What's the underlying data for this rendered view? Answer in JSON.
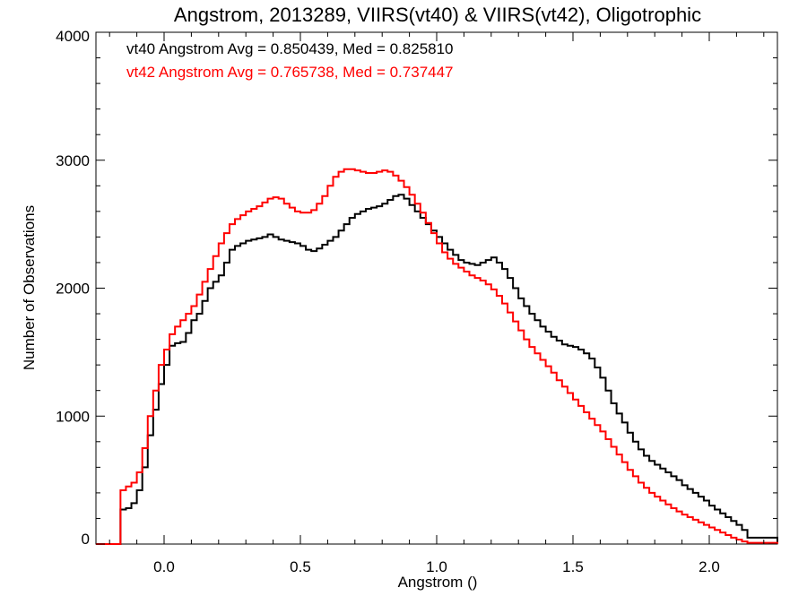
{
  "chart_data": {
    "type": "line",
    "title": "Angstrom, 2013289, VIIRS(vt40) & VIIRS(vt42), Oligotrophic",
    "xlabel": "Angstrom ()",
    "ylabel": "Number of Observations",
    "xlim": [
      -0.25,
      2.25
    ],
    "ylim": [
      0,
      4000
    ],
    "x_ticks": [
      0.0,
      0.5,
      1.0,
      1.5,
      2.0
    ],
    "x_tick_labels": [
      "0.0",
      "0.5",
      "1.0",
      "1.5",
      "2.0"
    ],
    "y_ticks": [
      0,
      1000,
      2000,
      3000,
      4000
    ],
    "y_tick_labels": [
      "0",
      "1000",
      "2000",
      "3000",
      "4000"
    ],
    "grid": false,
    "step": "histogram",
    "x": [
      -0.25,
      -0.17,
      -0.16,
      -0.14,
      -0.12,
      -0.1,
      -0.08,
      -0.06,
      -0.04,
      -0.02,
      0.0,
      0.02,
      0.04,
      0.06,
      0.08,
      0.1,
      0.12,
      0.14,
      0.16,
      0.18,
      0.2,
      0.22,
      0.24,
      0.26,
      0.28,
      0.3,
      0.32,
      0.34,
      0.36,
      0.38,
      0.4,
      0.42,
      0.44,
      0.46,
      0.48,
      0.5,
      0.52,
      0.54,
      0.56,
      0.58,
      0.6,
      0.62,
      0.64,
      0.66,
      0.68,
      0.7,
      0.72,
      0.74,
      0.76,
      0.78,
      0.8,
      0.82,
      0.84,
      0.86,
      0.88,
      0.9,
      0.92,
      0.94,
      0.96,
      0.98,
      1.0,
      1.02,
      1.04,
      1.06,
      1.08,
      1.1,
      1.12,
      1.14,
      1.16,
      1.18,
      1.2,
      1.22,
      1.24,
      1.26,
      1.28,
      1.3,
      1.32,
      1.34,
      1.36,
      1.38,
      1.4,
      1.42,
      1.44,
      1.46,
      1.48,
      1.5,
      1.52,
      1.54,
      1.56,
      1.58,
      1.6,
      1.62,
      1.64,
      1.66,
      1.68,
      1.7,
      1.72,
      1.74,
      1.76,
      1.78,
      1.8,
      1.82,
      1.84,
      1.86,
      1.88,
      1.9,
      1.92,
      1.94,
      1.96,
      1.98,
      2.0,
      2.02,
      2.04,
      2.06,
      2.08,
      2.1,
      2.12,
      2.14,
      2.25
    ],
    "series": [
      {
        "name": "vt40 Angstrom Avg = 0.850439, Med = 0.825810",
        "color": "#000000",
        "values": [
          0,
          0,
          270,
          280,
          320,
          420,
          600,
          850,
          1050,
          1250,
          1400,
          1550,
          1570,
          1580,
          1650,
          1750,
          1800,
          1900,
          2000,
          2050,
          2100,
          2200,
          2300,
          2330,
          2350,
          2370,
          2380,
          2390,
          2400,
          2420,
          2400,
          2380,
          2370,
          2360,
          2350,
          2330,
          2300,
          2290,
          2310,
          2340,
          2370,
          2400,
          2450,
          2500,
          2550,
          2580,
          2600,
          2620,
          2630,
          2640,
          2660,
          2690,
          2720,
          2730,
          2700,
          2650,
          2600,
          2550,
          2500,
          2450,
          2400,
          2350,
          2300,
          2260,
          2220,
          2200,
          2190,
          2180,
          2200,
          2220,
          2240,
          2200,
          2150,
          2080,
          2000,
          1920,
          1860,
          1800,
          1750,
          1700,
          1660,
          1620,
          1590,
          1560,
          1550,
          1540,
          1520,
          1490,
          1450,
          1380,
          1300,
          1200,
          1100,
          1020,
          950,
          870,
          800,
          740,
          690,
          650,
          620,
          590,
          560,
          530,
          500,
          460,
          430,
          400,
          370,
          340,
          300,
          270,
          240,
          210,
          180,
          150,
          110,
          50,
          0
        ]
      },
      {
        "name": "vt42 Angstrom Avg = 0.765738, Med = 0.737447",
        "color": "#ff0000",
        "values": [
          0,
          0,
          420,
          450,
          480,
          560,
          750,
          1000,
          1200,
          1400,
          1520,
          1640,
          1700,
          1750,
          1800,
          1860,
          1950,
          2050,
          2150,
          2250,
          2350,
          2430,
          2500,
          2540,
          2570,
          2600,
          2620,
          2640,
          2670,
          2700,
          2710,
          2700,
          2660,
          2630,
          2600,
          2590,
          2590,
          2610,
          2660,
          2720,
          2800,
          2870,
          2910,
          2930,
          2930,
          2920,
          2910,
          2900,
          2900,
          2910,
          2920,
          2910,
          2880,
          2840,
          2790,
          2730,
          2660,
          2590,
          2510,
          2430,
          2350,
          2280,
          2230,
          2190,
          2160,
          2130,
          2100,
          2080,
          2060,
          2030,
          1990,
          1940,
          1880,
          1810,
          1740,
          1670,
          1600,
          1540,
          1490,
          1440,
          1390,
          1340,
          1280,
          1230,
          1180,
          1130,
          1080,
          1030,
          980,
          930,
          880,
          820,
          760,
          700,
          640,
          580,
          530,
          480,
          440,
          400,
          370,
          340,
          310,
          280,
          255,
          230,
          210,
          190,
          170,
          150,
          130,
          110,
          90,
          70,
          50,
          35,
          20,
          10,
          0
        ]
      }
    ],
    "legend": {
      "placement": "top-left",
      "entries": [
        {
          "text": "vt40 Angstrom Avg = 0.850439, Med = 0.825810",
          "color": "#000000"
        },
        {
          "text": "vt42 Angstrom Avg = 0.765738, Med = 0.737447",
          "color": "#ff0000"
        }
      ]
    }
  }
}
